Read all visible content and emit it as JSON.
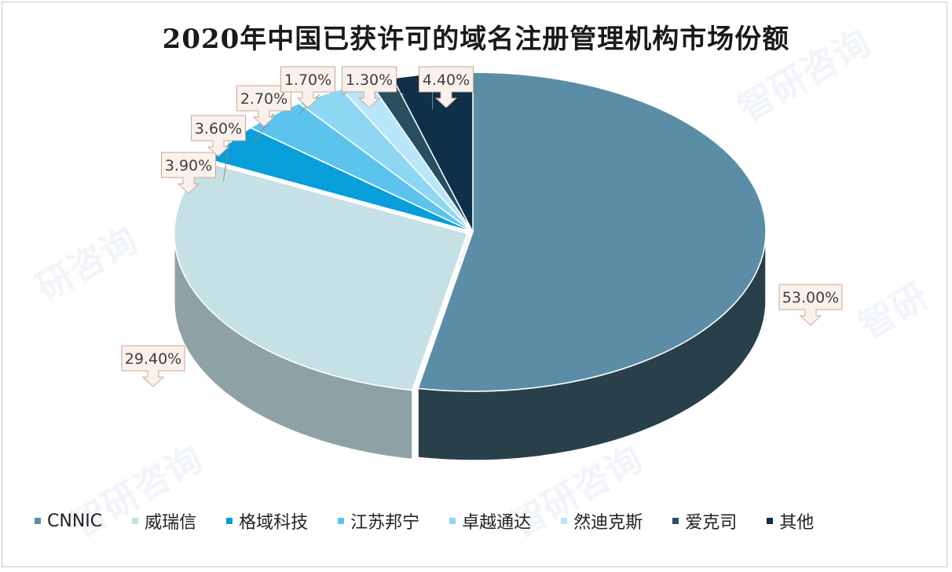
{
  "chart_data": {
    "type": "pie",
    "title": "2020年中国已获许可的域名注册管理机构市场份额",
    "categories": [
      "CNNIC",
      "威瑞信",
      "格域科技",
      "江苏邦宁",
      "卓越通达",
      "然迪克斯",
      "爱克司",
      "其他"
    ],
    "values": [
      53.0,
      29.4,
      3.9,
      3.6,
      2.7,
      1.7,
      1.3,
      4.4
    ],
    "data_labels": [
      "53.00%",
      "29.40%",
      "3.90%",
      "3.60%",
      "2.70%",
      "1.70%",
      "1.30%",
      "4.40%"
    ],
    "colors": [
      "#5b8ea6",
      "#c5e1e6",
      "#089ed9",
      "#5cc4ec",
      "#8dd7f3",
      "#b9e6f8",
      "#284e61",
      "#0e3048"
    ],
    "legend_position": "bottom",
    "style": "3d-pie"
  }
}
